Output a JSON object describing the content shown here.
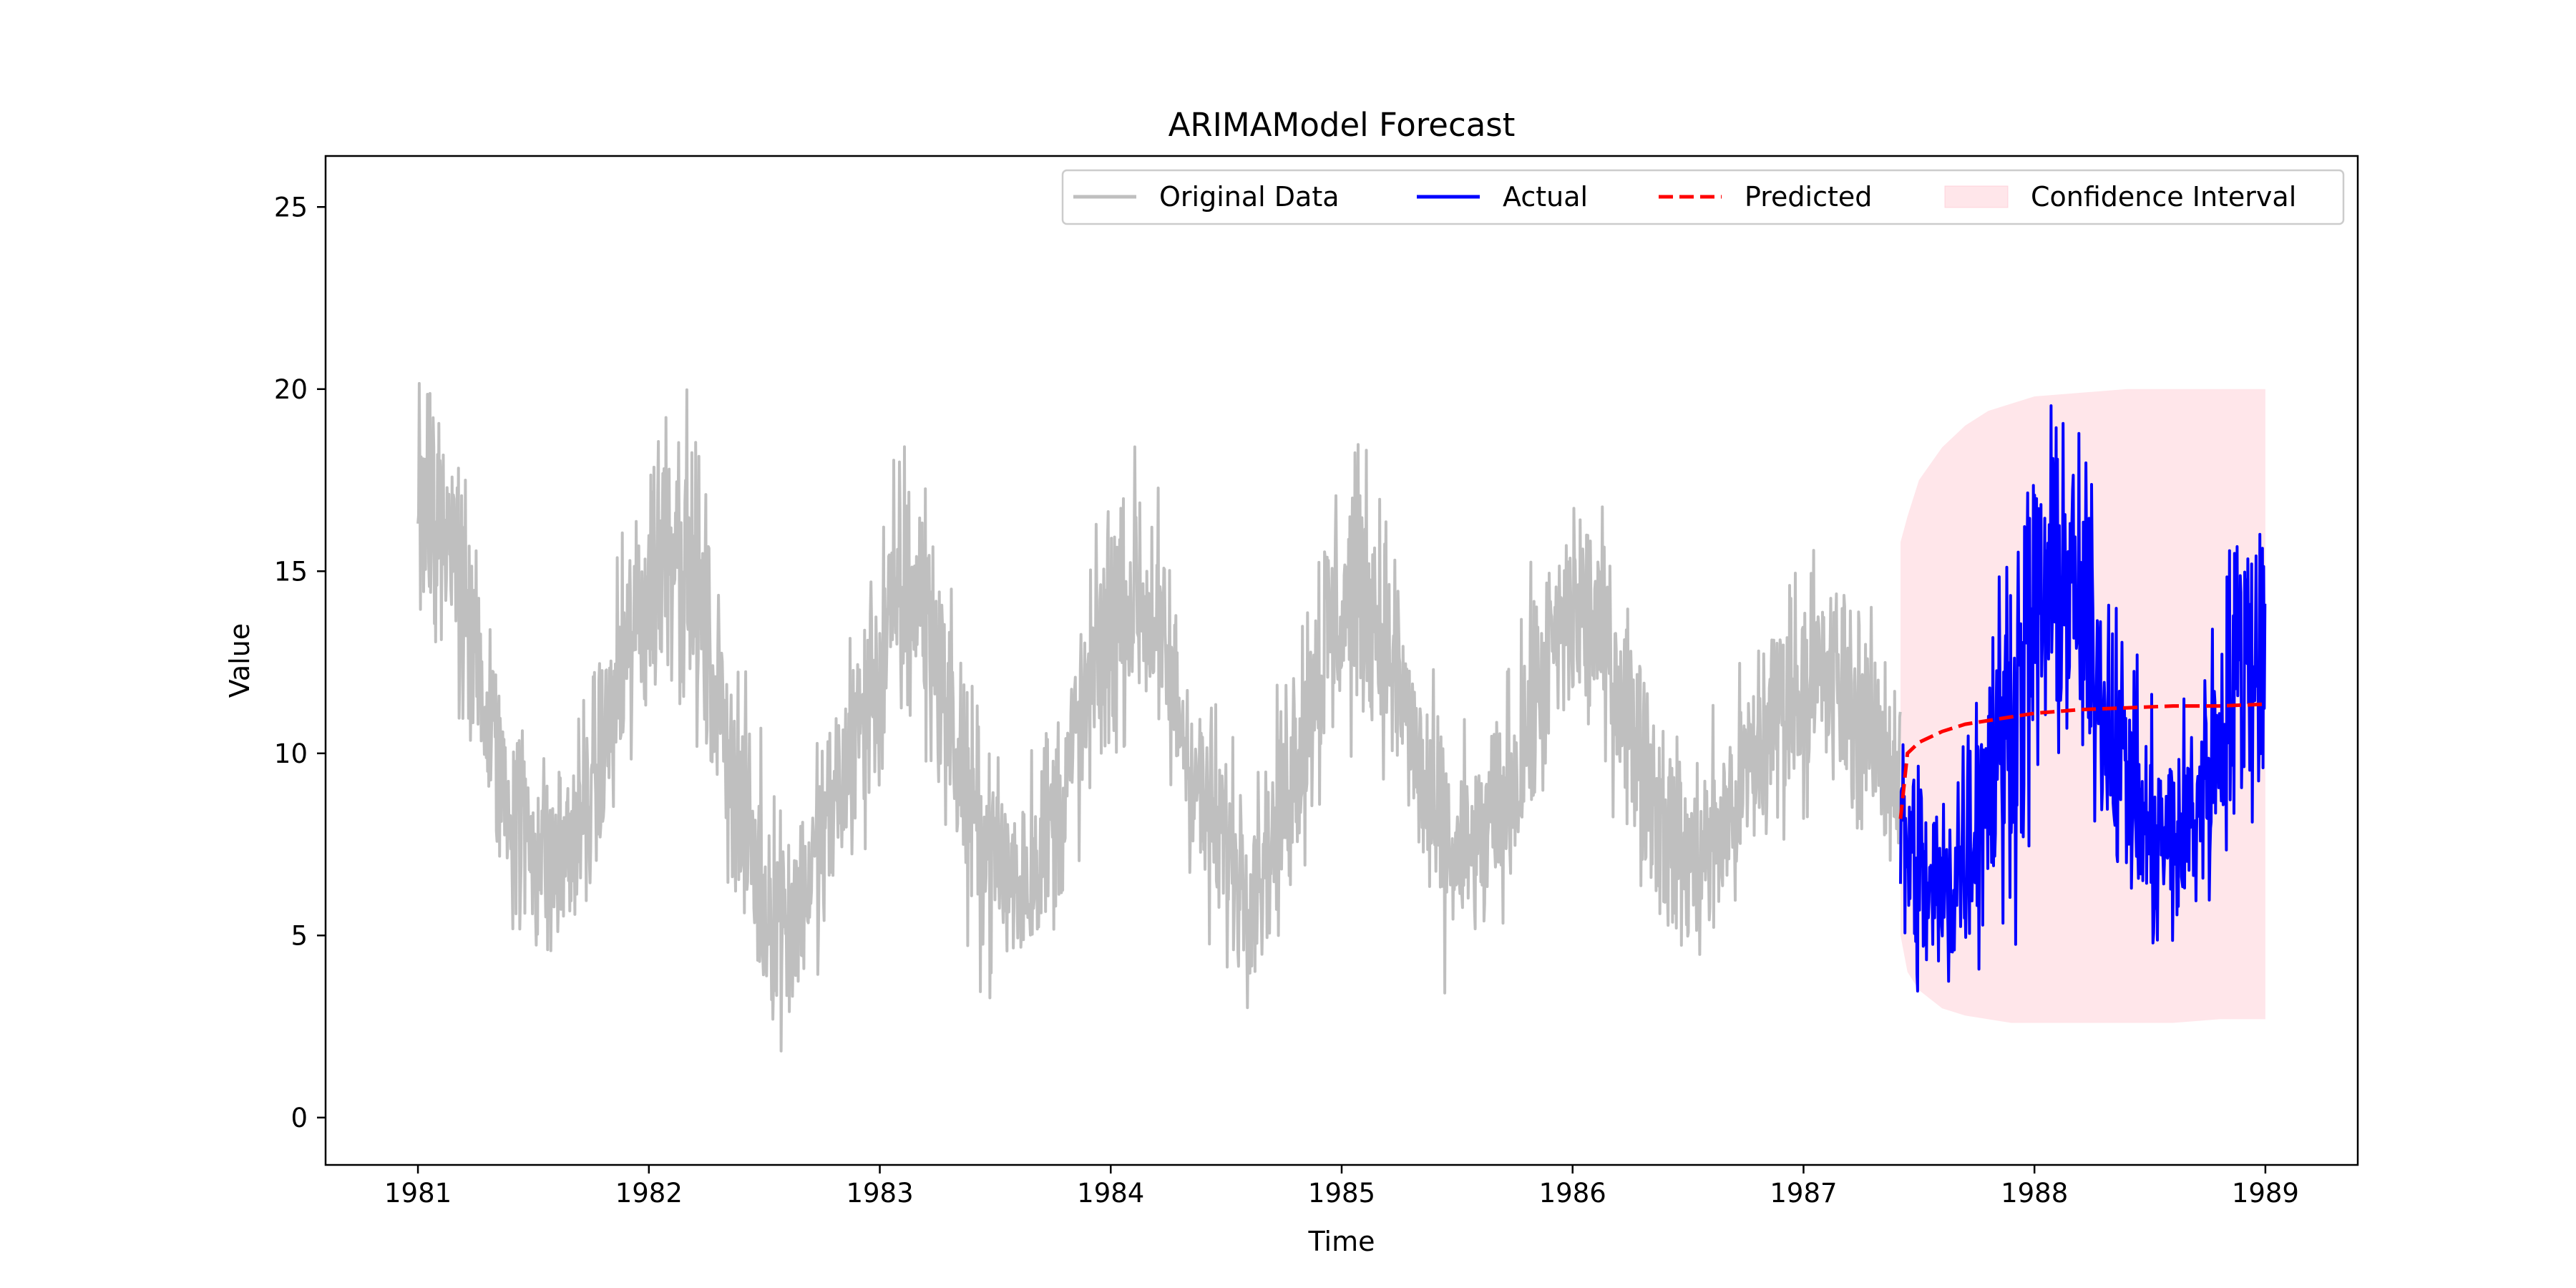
{
  "chart_data": {
    "type": "line",
    "title": "ARIMAModel Forecast",
    "xlabel": "Time",
    "ylabel": "Value",
    "xlim": [
      1980.6,
      1989.4
    ],
    "ylim": [
      -1.3,
      26.4
    ],
    "x_ticks": [
      1981,
      1982,
      1983,
      1984,
      1985,
      1986,
      1987,
      1988,
      1989
    ],
    "x_tick_labels": [
      "1981",
      "1982",
      "1983",
      "1984",
      "1985",
      "1986",
      "1987",
      "1988",
      "1989"
    ],
    "y_ticks": [
      0,
      5,
      10,
      15,
      20,
      25
    ],
    "y_tick_labels": [
      "0",
      "5",
      "10",
      "15",
      "20",
      "25"
    ],
    "grid": false,
    "legend_position": "top-right",
    "legend": [
      {
        "label": "Original Data",
        "style": "line",
        "color": "#bfbfbf"
      },
      {
        "label": "Actual",
        "style": "line",
        "color": "#0000ff"
      },
      {
        "label": "Predicted",
        "style": "dashed",
        "color": "#ff0000"
      },
      {
        "label": "Confidence Interval",
        "style": "band",
        "color": "#ffc0cb"
      }
    ],
    "series": [
      {
        "name": "Original Data",
        "color": "#bfbfbf",
        "x": [
          1981.0,
          1981.1,
          1981.2,
          1981.3,
          1981.4,
          1981.5,
          1981.6,
          1981.7,
          1981.8,
          1981.9,
          1982.0,
          1982.1,
          1982.2,
          1982.3,
          1982.4,
          1982.5,
          1982.6,
          1982.7,
          1982.8,
          1982.9,
          1983.0,
          1983.1,
          1983.2,
          1983.3,
          1983.4,
          1983.5,
          1983.6,
          1983.7,
          1983.8,
          1983.9,
          1984.0,
          1984.1,
          1984.2,
          1984.3,
          1984.4,
          1984.5,
          1984.6,
          1984.7,
          1984.8,
          1984.9,
          1985.0,
          1985.1,
          1985.2,
          1985.3,
          1985.4,
          1985.5,
          1985.6,
          1985.7,
          1985.8,
          1985.9,
          1986.0,
          1986.1,
          1986.2,
          1986.3,
          1986.4,
          1986.5,
          1986.6,
          1986.7,
          1986.8,
          1986.9,
          1987.0,
          1987.1,
          1987.2,
          1987.3,
          1987.42
        ],
        "y": [
          17.5,
          16.5,
          14.0,
          11.0,
          8.5,
          7.5,
          7.0,
          8.0,
          10.0,
          12.5,
          14.5,
          16.5,
          14.5,
          11.5,
          8.5,
          6.0,
          5.5,
          6.5,
          8.5,
          10.5,
          12.5,
          14.5,
          14.0,
          11.0,
          8.0,
          7.0,
          6.5,
          7.5,
          9.0,
          11.5,
          13.5,
          14.5,
          13.5,
          11.0,
          8.5,
          7.5,
          6.5,
          7.5,
          10.0,
          12.5,
          14.0,
          14.5,
          13.0,
          10.5,
          8.0,
          7.0,
          7.5,
          8.5,
          10.5,
          12.5,
          14.0,
          13.5,
          12.0,
          10.0,
          8.0,
          7.0,
          7.5,
          8.5,
          10.0,
          11.5,
          12.0,
          12.0,
          11.5,
          10.5,
          9.5
        ],
        "amplitude": [
          3.8,
          3.5,
          3.0,
          2.8,
          2.8,
          2.8,
          2.6,
          2.6,
          2.8,
          3.0,
          3.8,
          4.0,
          3.5,
          3.0,
          3.0,
          3.0,
          2.8,
          2.8,
          2.8,
          3.0,
          3.5,
          3.8,
          3.4,
          3.0,
          3.0,
          2.8,
          2.8,
          2.8,
          2.8,
          3.0,
          3.3,
          3.3,
          3.0,
          2.8,
          2.8,
          2.8,
          2.6,
          2.6,
          3.0,
          3.5,
          3.5,
          3.3,
          3.0,
          2.8,
          2.8,
          2.8,
          2.6,
          2.8,
          3.0,
          3.0,
          3.0,
          3.0,
          2.8,
          2.8,
          2.6,
          2.6,
          2.6,
          2.8,
          3.0,
          3.0,
          3.0,
          3.0,
          2.8,
          2.6,
          2.6
        ]
      },
      {
        "name": "Actual",
        "color": "#0000ff",
        "x": [
          1987.42,
          1987.5,
          1987.6,
          1987.7,
          1987.8,
          1987.9,
          1988.0,
          1988.1,
          1988.2,
          1988.3,
          1988.4,
          1988.5,
          1988.6,
          1988.7,
          1988.8,
          1988.9,
          1989.0
        ],
        "y": [
          8.0,
          6.5,
          6.0,
          7.5,
          9.5,
          11.0,
          13.5,
          15.0,
          14.0,
          11.5,
          9.5,
          7.5,
          7.5,
          8.5,
          10.5,
          12.5,
          13.0
        ],
        "amplitude": [
          2.8,
          3.0,
          3.0,
          3.2,
          3.8,
          4.5,
          4.5,
          4.0,
          3.8,
          3.5,
          3.0,
          2.8,
          2.8,
          3.0,
          3.5,
          4.2,
          4.0
        ]
      },
      {
        "name": "Predicted",
        "color": "#ff0000",
        "x": [
          1987.42,
          1987.45,
          1987.5,
          1987.6,
          1987.7,
          1987.8,
          1987.9,
          1988.0,
          1988.2,
          1988.4,
          1988.6,
          1988.8,
          1989.0
        ],
        "y": [
          8.2,
          10.0,
          10.3,
          10.6,
          10.8,
          10.9,
          11.0,
          11.1,
          11.2,
          11.25,
          11.3,
          11.3,
          11.35
        ]
      }
    ],
    "confidence_interval": {
      "name": "Confidence Interval",
      "color": "#ffc0cb",
      "x": [
        1987.42,
        1987.45,
        1987.5,
        1987.6,
        1987.7,
        1987.8,
        1987.9,
        1988.0,
        1988.2,
        1988.4,
        1988.6,
        1988.8,
        1989.0
      ],
      "lower": [
        5.0,
        4.0,
        3.5,
        3.0,
        2.8,
        2.7,
        2.6,
        2.6,
        2.6,
        2.6,
        2.6,
        2.7,
        2.7
      ],
      "upper": [
        15.8,
        16.5,
        17.5,
        18.4,
        19.0,
        19.4,
        19.6,
        19.8,
        19.9,
        20.0,
        20.0,
        20.0,
        20.0
      ]
    }
  }
}
